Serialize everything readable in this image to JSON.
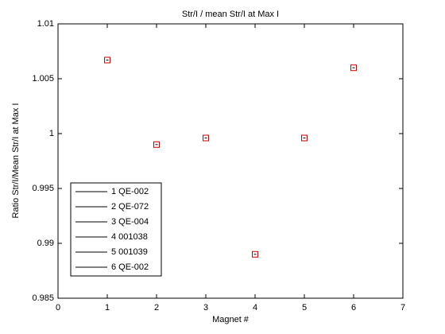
{
  "chart_data": {
    "type": "scatter",
    "title": "Str/I / mean Str/I at Max I",
    "x_label": "Magnet #",
    "y_label": "Ratio Str/I/Mean Str/I at Max I",
    "xlim": [
      0,
      7
    ],
    "xticks": [
      0,
      1,
      2,
      3,
      4,
      5,
      6,
      7
    ],
    "ylim": [
      0.985,
      1.01
    ],
    "yticks": [
      0.985,
      0.99,
      0.995,
      1,
      1.005,
      1.01
    ],
    "grid": false,
    "legend_position": "lower left",
    "marker_color": "#cc0000",
    "series": [
      {
        "name": "1 QE-002",
        "color": "#000000",
        "x": [
          1
        ],
        "values": [
          1.0067
        ]
      },
      {
        "name": "2 QE-072",
        "color": "#000000",
        "x": [
          2
        ],
        "values": [
          0.999
        ]
      },
      {
        "name": "3 QE-004",
        "color": "#000000",
        "x": [
          3
        ],
        "values": [
          0.9996
        ]
      },
      {
        "name": "4 001038",
        "color": "#000000",
        "x": [
          4
        ],
        "values": [
          0.989
        ]
      },
      {
        "name": "5 001039",
        "color": "#000000",
        "x": [
          5
        ],
        "values": [
          0.9996
        ]
      },
      {
        "name": "6 QE-002",
        "color": "#000000",
        "x": [
          6
        ],
        "values": [
          1.006
        ]
      }
    ]
  }
}
